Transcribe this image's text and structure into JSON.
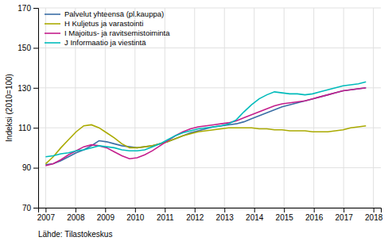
{
  "chart_data": {
    "type": "line",
    "y_label": "Indeksi (2010=100)",
    "source": "Lähde: Tilastokeskus",
    "x": [
      2007,
      2007.255952,
      2007.511905,
      2007.767857,
      2008.02381,
      2008.279762,
      2008.535714,
      2008.791667,
      2009.047619,
      2009.303571,
      2009.559524,
      2009.815476,
      2010.071429,
      2010.327381,
      2010.583333,
      2010.839286,
      2011.095238,
      2011.35119,
      2011.607143,
      2011.863095,
      2012.119048,
      2012.375,
      2012.630952,
      2012.886905,
      2013.142857,
      2013.39881,
      2013.654762,
      2013.910714,
      2014.166667,
      2014.422619,
      2014.678571,
      2014.934524,
      2015.190476,
      2015.446429,
      2015.702381,
      2015.958333,
      2016.214286,
      2016.470238,
      2016.72619,
      2016.982143,
      2017.238095,
      2017.494048,
      2017.75
    ],
    "series": [
      {
        "name": "Palvelut yhteensä (pl.kauppa)",
        "color": "#3a6ea5",
        "values": [
          91.5,
          92.0,
          93.5,
          95.5,
          97.5,
          99.0,
          101.0,
          103.5,
          103.0,
          102.0,
          101.0,
          100.5,
          100.0,
          100.5,
          101.0,
          102.0,
          103.0,
          104.5,
          106.0,
          107.5,
          108.5,
          109.5,
          110.5,
          111.0,
          111.5,
          112.0,
          113.0,
          114.5,
          116.0,
          117.5,
          119.0,
          120.5,
          121.5,
          122.5,
          123.5,
          124.5,
          125.5,
          126.5,
          127.5,
          128.5,
          129.0,
          129.5,
          130.0
        ]
      },
      {
        "name": "H Kuljetus ja varastointi",
        "color": "#aaaa00",
        "values": [
          92.0,
          95.5,
          100.0,
          104.0,
          108.0,
          111.0,
          111.5,
          110.0,
          107.5,
          105.0,
          102.0,
          100.0,
          100.0,
          100.5,
          101.0,
          102.0,
          103.0,
          104.5,
          106.0,
          107.0,
          108.0,
          108.5,
          109.0,
          109.5,
          110.0,
          110.0,
          110.0,
          110.0,
          109.5,
          109.5,
          109.0,
          109.0,
          108.5,
          108.5,
          108.5,
          108.0,
          108.0,
          108.0,
          108.5,
          109.0,
          110.0,
          110.5,
          111.0
        ]
      },
      {
        "name": "I Majoitus- ja ravitsemistoiminta",
        "color": "#c41e8c",
        "values": [
          91.0,
          92.0,
          94.0,
          96.5,
          98.5,
          100.5,
          101.5,
          101.0,
          100.0,
          98.0,
          96.0,
          94.5,
          95.0,
          96.5,
          98.5,
          101.0,
          103.5,
          106.0,
          108.0,
          109.5,
          110.5,
          111.0,
          111.5,
          112.0,
          112.5,
          113.5,
          115.0,
          116.5,
          118.0,
          119.5,
          121.0,
          122.0,
          122.5,
          123.0,
          123.5,
          124.5,
          125.5,
          126.5,
          127.5,
          128.5,
          129.0,
          129.5,
          130.0
        ]
      },
      {
        "name": "J Informaatio ja viestintä",
        "color": "#00bbbb",
        "values": [
          95.5,
          96.0,
          97.0,
          97.5,
          98.5,
          99.0,
          100.0,
          101.0,
          100.5,
          100.0,
          99.0,
          98.5,
          98.5,
          99.0,
          100.5,
          102.0,
          104.0,
          106.0,
          107.5,
          108.5,
          109.5,
          110.0,
          110.5,
          111.0,
          112.0,
          114.0,
          118.0,
          121.5,
          124.5,
          126.5,
          128.0,
          127.5,
          127.0,
          127.0,
          126.5,
          127.0,
          128.0,
          129.0,
          130.0,
          131.0,
          131.5,
          132.0,
          133.0
        ]
      }
    ],
    "xlim": [
      2006.75,
      2018.25
    ],
    "xticks": [
      2007,
      2008,
      2009,
      2010,
      2011,
      2012,
      2013,
      2014,
      2015,
      2016,
      2017,
      2018
    ],
    "ylim": [
      70,
      170
    ],
    "yticks": [
      70,
      90,
      110,
      130,
      150,
      170
    ],
    "grid": true,
    "legend": "upper left"
  }
}
